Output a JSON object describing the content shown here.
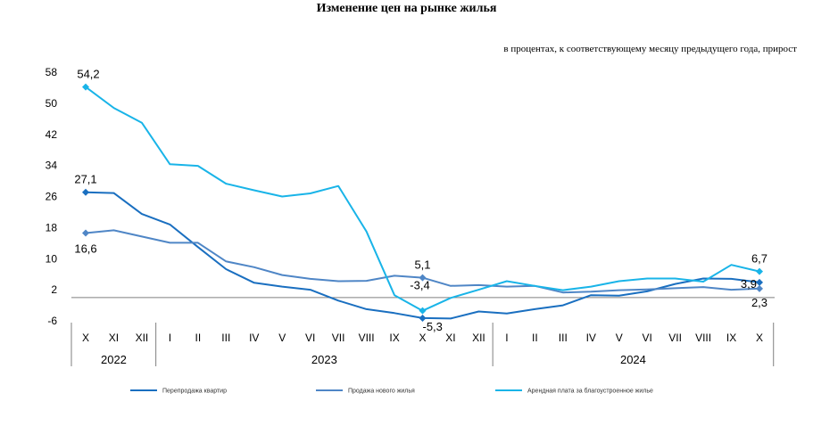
{
  "chart_data": {
    "type": "line",
    "title": "Изменение цен на рынке жилья",
    "subtitle": "в процентах, к соответствующему месяцу предыдущего года, прирост",
    "ylim": [
      -6,
      58
    ],
    "yticks": [
      "58",
      "50",
      "42",
      "34",
      "26",
      "18",
      "10",
      "2",
      "-6"
    ],
    "ytick_values": [
      58,
      50,
      42,
      34,
      26,
      18,
      10,
      2,
      -6
    ],
    "categories": [
      "X",
      "XI",
      "XII",
      "I",
      "II",
      "III",
      "IV",
      "V",
      "VI",
      "VII",
      "VIII",
      "IX",
      "X",
      "XI",
      "XII",
      "I",
      "II",
      "III",
      "IV",
      "V",
      "VI",
      "VII",
      "VIII",
      "IX",
      "X"
    ],
    "years": [
      {
        "label": "2022",
        "start": 0,
        "end": 2
      },
      {
        "label": "2023",
        "start": 3,
        "end": 14
      },
      {
        "label": "2024",
        "start": 15,
        "end": 24
      }
    ],
    "series": [
      {
        "name": "Перепродажа квартир",
        "color": "#1a6fc0",
        "values": [
          27.1,
          26.9,
          21.5,
          18.8,
          13.0,
          7.3,
          3.8,
          2.8,
          2.0,
          -0.8,
          -3.0,
          -4.0,
          -5.3,
          -5.4,
          -3.6,
          -4.1,
          -3.0,
          -2.0,
          0.6,
          0.5,
          1.6,
          3.5,
          4.9,
          4.8,
          3.9
        ],
        "labels": [
          {
            "index": 0,
            "text": "27,1"
          },
          {
            "index": 12,
            "text": "-5,3"
          },
          {
            "index": 24,
            "text": "3,9"
          }
        ]
      },
      {
        "name": "Продажа нового жилья",
        "color": "#4f86c6",
        "values": [
          16.6,
          17.3,
          15.7,
          14.1,
          14.1,
          9.3,
          7.8,
          5.8,
          4.8,
          4.2,
          4.3,
          5.6,
          5.1,
          3.0,
          3.2,
          2.8,
          3.0,
          1.3,
          1.5,
          1.9,
          2.1,
          2.4,
          2.7,
          2.0,
          2.3
        ],
        "labels": [
          {
            "index": 0,
            "text": "16,6"
          },
          {
            "index": 12,
            "text": "5,1"
          },
          {
            "index": 24,
            "text": "2,3"
          }
        ]
      },
      {
        "name": "Арендная плата за благоустроенное жилье",
        "color": "#19b4e8",
        "values": [
          54.2,
          48.8,
          45.0,
          34.3,
          33.9,
          29.3,
          27.6,
          26.0,
          26.8,
          28.7,
          17.0,
          0.6,
          -3.4,
          -0.1,
          2.0,
          4.2,
          3.0,
          1.9,
          2.8,
          4.2,
          4.9,
          4.9,
          4.1,
          8.4,
          6.7
        ],
        "labels": [
          {
            "index": 0,
            "text": "54,2"
          },
          {
            "index": 12,
            "text": "-3,4"
          },
          {
            "index": 24,
            "text": "6,7"
          }
        ]
      }
    ],
    "legend_position": "bottom",
    "grid": false
  }
}
